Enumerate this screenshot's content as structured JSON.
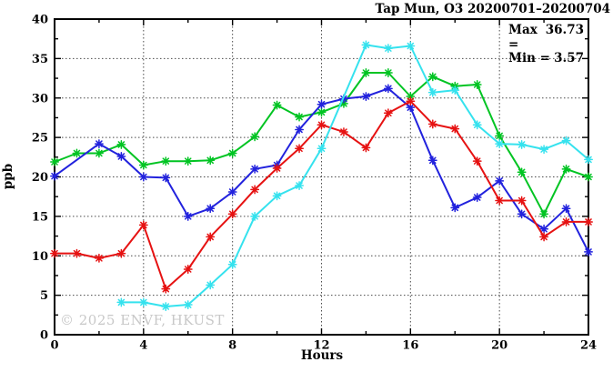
{
  "title": "Tap Mun, O3 20200701–20200704",
  "watermark": "© 2025 ENVF, HKUST",
  "stats": {
    "max_label": "Max =",
    "max_value": "36.73",
    "min_label": "Min =",
    "min_value": "3.57"
  },
  "chart_data": {
    "type": "line",
    "title": "Tap Mun, O3 20200701–20200704",
    "xlabel": "Hours",
    "ylabel": "ppb",
    "xlim": [
      0,
      24
    ],
    "ylim": [
      0,
      40
    ],
    "x_ticks": [
      0,
      4,
      8,
      12,
      16,
      20,
      24
    ],
    "x_minor_tick_step": 2,
    "y_ticks": [
      0,
      5,
      10,
      15,
      20,
      25,
      30,
      35,
      40
    ],
    "y_minor_tick_step": 2.5,
    "grid": "dotted-at-major",
    "legend_position": "none",
    "annotations": {
      "max": 36.73,
      "min": 3.57
    },
    "x": [
      0,
      1,
      2,
      3,
      4,
      5,
      6,
      7,
      8,
      9,
      10,
      11,
      12,
      13,
      14,
      15,
      16,
      17,
      18,
      19,
      20,
      21,
      22,
      23,
      24
    ],
    "series": [
      {
        "name": "green",
        "color": "#00c422",
        "values": [
          21.9,
          23.0,
          23.0,
          24.1,
          21.5,
          22.0,
          22.0,
          22.1,
          23.0,
          25.1,
          29.1,
          27.6,
          28.2,
          29.3,
          33.2,
          33.2,
          30.2,
          32.7,
          31.5,
          31.7,
          25.2,
          20.6,
          15.3,
          21.0,
          20.0
        ]
      },
      {
        "name": "blue",
        "color": "#2222dd",
        "values": [
          20.1,
          null,
          24.2,
          22.6,
          20.0,
          19.9,
          15.0,
          16.0,
          18.1,
          21.0,
          21.5,
          26.0,
          29.2,
          29.9,
          30.2,
          31.2,
          28.8,
          22.1,
          16.1,
          17.4,
          19.5,
          15.3,
          13.4,
          16.0,
          10.5
        ]
      },
      {
        "name": "red",
        "color": "#e61212",
        "values": [
          10.3,
          10.3,
          9.7,
          10.3,
          13.9,
          5.8,
          8.3,
          12.4,
          15.3,
          18.4,
          21.1,
          23.6,
          26.6,
          25.7,
          23.7,
          28.1,
          29.6,
          26.7,
          26.1,
          22.0,
          17.0,
          17.0,
          12.4,
          14.3,
          14.3
        ]
      },
      {
        "name": "cyan",
        "color": "#35e2ee",
        "values": [
          null,
          null,
          null,
          4.1,
          4.1,
          3.57,
          3.8,
          6.3,
          8.9,
          15.0,
          17.6,
          18.9,
          23.6,
          null,
          36.73,
          36.3,
          36.6,
          30.7,
          31.0,
          26.6,
          24.2,
          24.1,
          23.5,
          24.6,
          22.2
        ]
      }
    ]
  }
}
